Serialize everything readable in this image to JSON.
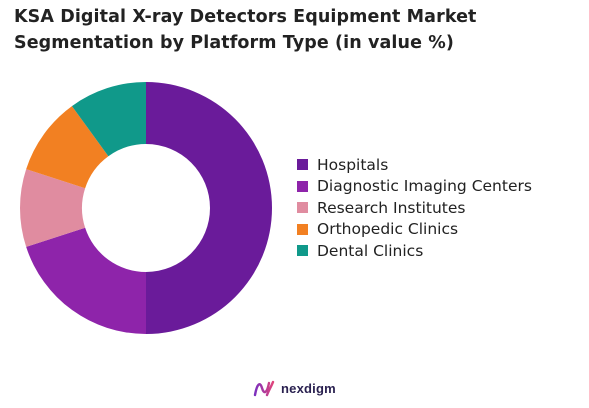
{
  "chart_data": {
    "type": "pie",
    "title": "KSA Digital X-ray Detectors Equipment Market Segmentation by Platform Type (in value %)",
    "categories": [
      "Hospitals",
      "Diagnostic Imaging Centers",
      "Research Institutes",
      "Orthopedic Clinics",
      "Dental Clinics"
    ],
    "values": [
      50,
      20,
      10,
      10,
      10
    ],
    "colors": [
      "#6a1b9a",
      "#8e24aa",
      "#e08ca0",
      "#f28022",
      "#10998a"
    ],
    "donut": true,
    "legend_position": "right"
  },
  "brand": {
    "name": "nexdigm",
    "icon": "nexdigm-logo-icon"
  }
}
